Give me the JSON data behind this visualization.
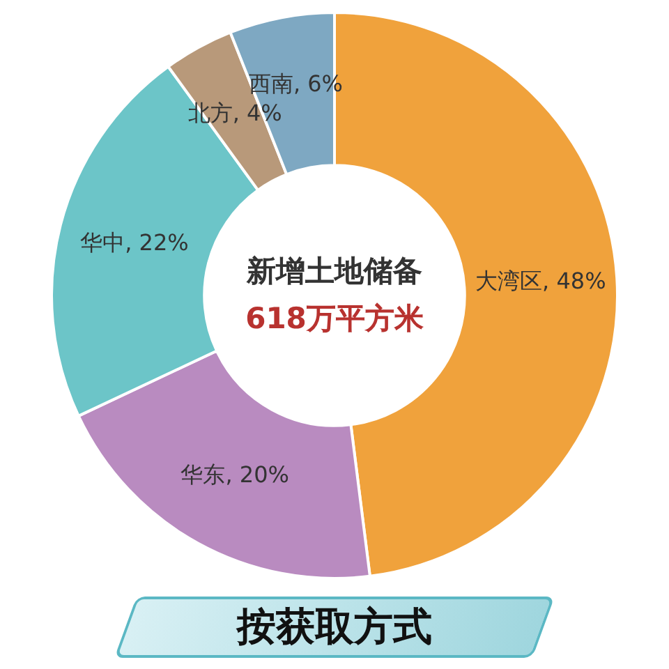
{
  "chart_data": {
    "type": "donut",
    "title": "新增土地储备",
    "subtitle": "618万平方米",
    "categories": [
      "大湾区",
      "华东",
      "华中",
      "北方",
      "西南"
    ],
    "values": [
      48,
      20,
      22,
      4,
      6
    ],
    "colors": [
      "#f0a23c",
      "#b98bc0",
      "#6cc5c8",
      "#b8997a",
      "#7ea8c2"
    ],
    "value_labels": [
      "48%",
      "20%",
      "22%",
      "4%",
      "6%"
    ],
    "legend": false,
    "annotations": [
      "按获取方式"
    ]
  }
}
